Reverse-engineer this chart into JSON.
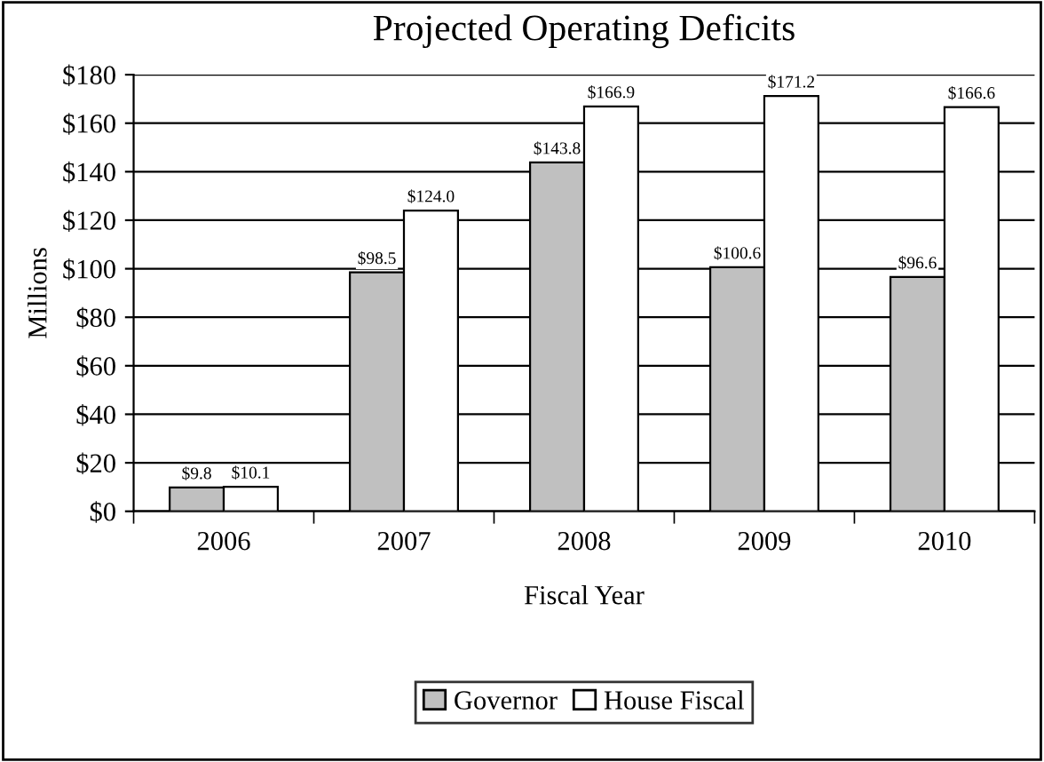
{
  "chart_data": {
    "type": "bar",
    "title": "Projected Operating Deficits",
    "xlabel": "Fiscal Year",
    "ylabel": "Millions",
    "categories": [
      "2006",
      "2007",
      "2008",
      "2009",
      "2010"
    ],
    "series": [
      {
        "name": "Governor",
        "color": "#c0c0c0",
        "values": [
          9.8,
          98.5,
          143.8,
          100.6,
          96.6
        ],
        "value_labels": [
          "$9.8",
          "$98.5",
          "$143.8",
          "$100.6",
          "$96.6"
        ]
      },
      {
        "name": "House Fiscal",
        "color": "#ffffff",
        "values": [
          10.1,
          124.0,
          166.9,
          171.2,
          166.6
        ],
        "value_labels": [
          "$10.1",
          "$124.0",
          "$166.9",
          "$171.2",
          "$166.6"
        ]
      }
    ],
    "ylim": [
      0,
      180
    ],
    "yticks": [
      {
        "value": 0,
        "label": "$0"
      },
      {
        "value": 20,
        "label": "$20"
      },
      {
        "value": 40,
        "label": "$40"
      },
      {
        "value": 60,
        "label": "$60"
      },
      {
        "value": 80,
        "label": "$80"
      },
      {
        "value": 100,
        "label": "$100"
      },
      {
        "value": 120,
        "label": "$120"
      },
      {
        "value": 140,
        "label": "$140"
      },
      {
        "value": 160,
        "label": "$160"
      },
      {
        "value": 180,
        "label": "$180"
      }
    ],
    "grid": "y",
    "legend": "bottom"
  }
}
